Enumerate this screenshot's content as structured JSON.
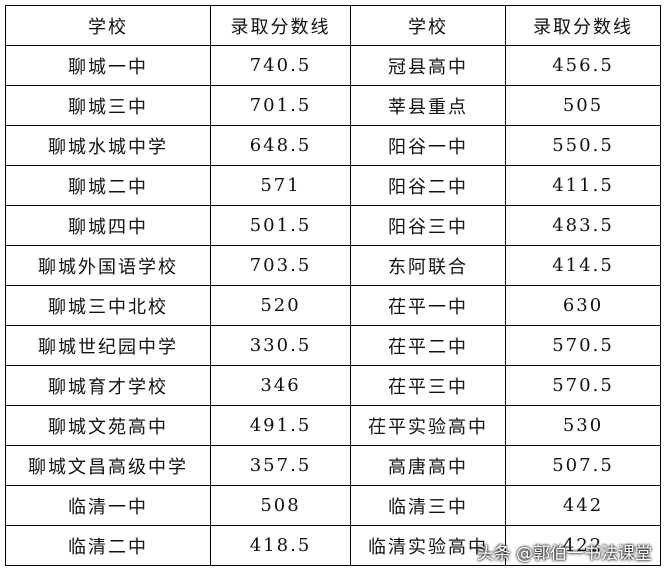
{
  "table": {
    "header": [
      "学校",
      "录取分数线",
      "学校",
      "录取分数线"
    ],
    "rows": [
      [
        "聊城一中",
        "740.5",
        "冠县高中",
        "456.5"
      ],
      [
        "聊城三中",
        "701.5",
        "莘县重点",
        "505"
      ],
      [
        "聊城水城中学",
        "648.5",
        "阳谷一中",
        "550.5"
      ],
      [
        "聊城二中",
        "571",
        "阳谷二中",
        "411.5"
      ],
      [
        "聊城四中",
        "501.5",
        "阳谷三中",
        "483.5"
      ],
      [
        "聊城外国语学校",
        "703.5",
        "东阿联合",
        "414.5"
      ],
      [
        "聊城三中北校",
        "520",
        "茌平一中",
        "630"
      ],
      [
        "聊城世纪园中学",
        "330.5",
        "茌平二中",
        "570.5"
      ],
      [
        "聊城育才学校",
        "346",
        "茌平三中",
        "570.5"
      ],
      [
        "聊城文苑高中",
        "491.5",
        "茌平实验高中",
        "530"
      ],
      [
        "聊城文昌高级中学",
        "357.5",
        "高唐高中",
        "507.5"
      ],
      [
        "临清一中",
        "508",
        "临清三中",
        "442"
      ],
      [
        "临清二中",
        "418.5",
        "临清实验高中",
        "422"
      ]
    ]
  },
  "watermark": "头条 @郭伯一书法课堂"
}
